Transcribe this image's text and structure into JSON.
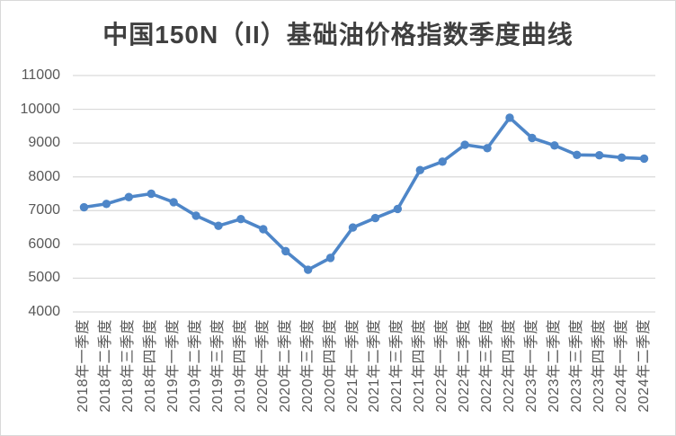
{
  "chart_data": {
    "type": "line",
    "title": "中国150N（II）基础油价格指数季度曲线",
    "categories": [
      "2018年一季度",
      "2018年二季度",
      "2018年三季度",
      "2018年四季度",
      "2019年一季度",
      "2019年二季度",
      "2019年三季度",
      "2019年四季度",
      "2020年一季度",
      "2020年二季度",
      "2020年三季度",
      "2020年四季度",
      "2021年一季度",
      "2021年二季度",
      "2021年三季度",
      "2021年四季度",
      "2022年一季度",
      "2022年二季度",
      "2022年三季度",
      "2022年四季度",
      "2023年一季度",
      "2023年二季度",
      "2023年三季度",
      "2023年四季度",
      "2024年一季度",
      "2024年二季度"
    ],
    "values": [
      7100,
      7200,
      7400,
      7500,
      7250,
      6850,
      6550,
      6750,
      6450,
      5800,
      5250,
      5600,
      6500,
      6780,
      7050,
      8200,
      8450,
      8950,
      8850,
      9750,
      9150,
      8930,
      8650,
      8640,
      8570,
      8540
    ],
    "xlabel": "",
    "ylabel": "",
    "ylim": [
      4000,
      11000
    ],
    "y_ticks": [
      11000,
      10000,
      9000,
      8000,
      7000,
      6000,
      5000,
      4000
    ],
    "grid": "horizontal",
    "legend": "none",
    "line_color": "#4E86C8",
    "marker": "circle",
    "gridline_color": "#D9D9D9",
    "axis_text_color": "#595959",
    "title_color": "#3F3F3F",
    "background": "#FFFFFF"
  }
}
